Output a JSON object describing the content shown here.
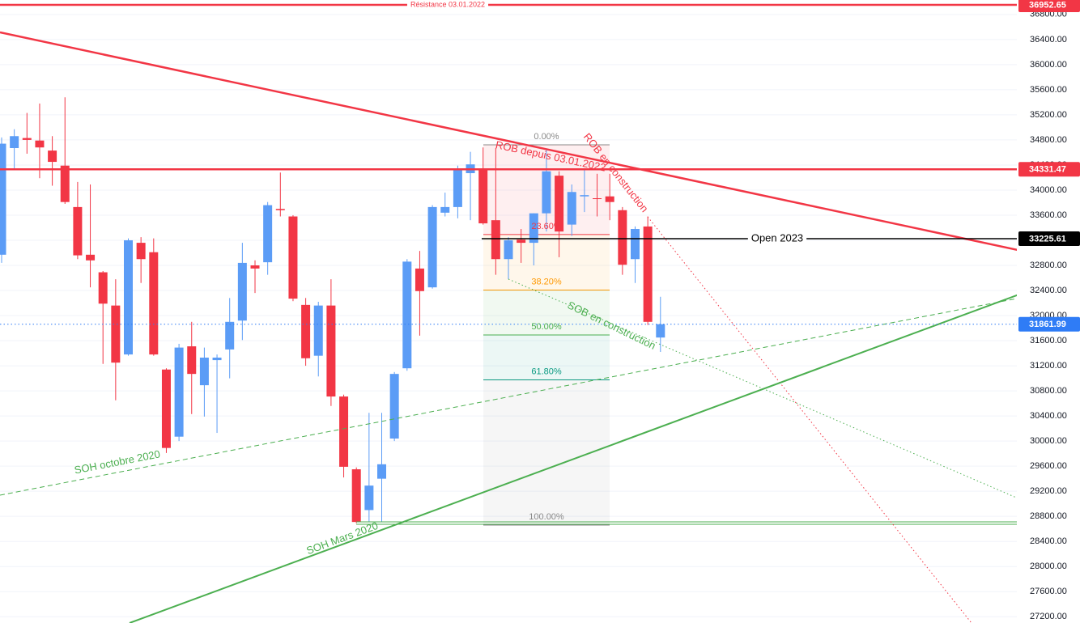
{
  "chart_data": {
    "type": "candlestick",
    "ylim": [
      27100,
      37030
    ],
    "yticks": [
      {
        "value": 27200,
        "label": "27200.00"
      },
      {
        "value": 27600,
        "label": "27600.00"
      },
      {
        "value": 28000,
        "label": "28000.00"
      },
      {
        "value": 28400,
        "label": "28400.00"
      },
      {
        "value": 28800,
        "label": "28800.00"
      },
      {
        "value": 29200,
        "label": "29200.00"
      },
      {
        "value": 29600,
        "label": "29600.00"
      },
      {
        "value": 30000,
        "label": "30000.00"
      },
      {
        "value": 30400,
        "label": "30400.00"
      },
      {
        "value": 30800,
        "label": "30800.00"
      },
      {
        "value": 31200,
        "label": "31200.00"
      },
      {
        "value": 31600,
        "label": "31600.00"
      },
      {
        "value": 32000,
        "label": "32000.00"
      },
      {
        "value": 32400,
        "label": "32400.00"
      },
      {
        "value": 32800,
        "label": "32800.00"
      },
      {
        "value": 33200,
        "label": "33200.00"
      },
      {
        "value": 33600,
        "label": "33600.00"
      },
      {
        "value": 34000,
        "label": "34000.00"
      },
      {
        "value": 34400,
        "label": "34400.00"
      },
      {
        "value": 34800,
        "label": "34800.00"
      },
      {
        "value": 35200,
        "label": "35200.00"
      },
      {
        "value": 35600,
        "label": "35600.00"
      },
      {
        "value": 36000,
        "label": "36000.00"
      },
      {
        "value": 36400,
        "label": "36400.00"
      },
      {
        "value": 36800,
        "label": "36800.00"
      }
    ],
    "grid": true,
    "up_color": "#5b9cf6",
    "down_color": "#f23645",
    "candles": [
      {
        "open": 32970,
        "high": 34840,
        "low": 32840,
        "close": 34740
      },
      {
        "open": 34670,
        "high": 34970,
        "low": 34320,
        "close": 34860
      },
      {
        "open": 34830,
        "high": 35230,
        "low": 34580,
        "close": 34800
      },
      {
        "open": 34790,
        "high": 35380,
        "low": 34190,
        "close": 34680
      },
      {
        "open": 34630,
        "high": 34860,
        "low": 34070,
        "close": 34450
      },
      {
        "open": 34390,
        "high": 35480,
        "low": 33780,
        "close": 33810
      },
      {
        "open": 33730,
        "high": 34130,
        "low": 32900,
        "close": 32960
      },
      {
        "open": 32970,
        "high": 34090,
        "low": 32450,
        "close": 32880
      },
      {
        "open": 32690,
        "high": 32710,
        "low": 31230,
        "close": 32190
      },
      {
        "open": 32160,
        "high": 32580,
        "low": 30650,
        "close": 31250
      },
      {
        "open": 31380,
        "high": 33230,
        "low": 31360,
        "close": 33200
      },
      {
        "open": 33160,
        "high": 33250,
        "low": 32520,
        "close": 32900
      },
      {
        "open": 33010,
        "high": 33230,
        "low": 31360,
        "close": 31380
      },
      {
        "open": 31140,
        "high": 31160,
        "low": 29810,
        "close": 29890
      },
      {
        "open": 30070,
        "high": 31550,
        "low": 30000,
        "close": 31490
      },
      {
        "open": 31510,
        "high": 31900,
        "low": 30430,
        "close": 31070
      },
      {
        "open": 30890,
        "high": 31490,
        "low": 30390,
        "close": 31330
      },
      {
        "open": 31290,
        "high": 31380,
        "low": 30130,
        "close": 31330
      },
      {
        "open": 31460,
        "high": 32280,
        "low": 31000,
        "close": 31900
      },
      {
        "open": 31920,
        "high": 33160,
        "low": 31610,
        "close": 32840
      },
      {
        "open": 32800,
        "high": 32880,
        "low": 32360,
        "close": 32750
      },
      {
        "open": 32850,
        "high": 33810,
        "low": 32650,
        "close": 33760
      },
      {
        "open": 33700,
        "high": 34280,
        "low": 33580,
        "close": 33680
      },
      {
        "open": 33580,
        "high": 33600,
        "low": 32230,
        "close": 32270
      },
      {
        "open": 32170,
        "high": 32280,
        "low": 31200,
        "close": 31320
      },
      {
        "open": 31360,
        "high": 32220,
        "low": 31030,
        "close": 32160
      },
      {
        "open": 32160,
        "high": 32580,
        "low": 30560,
        "close": 30710
      },
      {
        "open": 30710,
        "high": 30740,
        "low": 29420,
        "close": 29590
      },
      {
        "open": 29550,
        "high": 29580,
        "low": 28690,
        "close": 28710
      },
      {
        "open": 28900,
        "high": 30450,
        "low": 28710,
        "close": 29290
      },
      {
        "open": 29400,
        "high": 30450,
        "low": 28710,
        "close": 29630
      },
      {
        "open": 30040,
        "high": 31100,
        "low": 30000,
        "close": 31070
      },
      {
        "open": 31160,
        "high": 32900,
        "low": 31120,
        "close": 32860
      },
      {
        "open": 32750,
        "high": 33030,
        "low": 31680,
        "close": 32390
      },
      {
        "open": 32450,
        "high": 33760,
        "low": 32430,
        "close": 33730
      },
      {
        "open": 33640,
        "high": 33960,
        "low": 33580,
        "close": 33730
      },
      {
        "open": 33730,
        "high": 34390,
        "low": 33550,
        "close": 34320
      },
      {
        "open": 34270,
        "high": 34610,
        "low": 33520,
        "close": 34410
      },
      {
        "open": 34320,
        "high": 34680,
        "low": 33450,
        "close": 33470
      },
      {
        "open": 33520,
        "high": 34670,
        "low": 32650,
        "close": 32900
      },
      {
        "open": 32900,
        "high": 33250,
        "low": 32580,
        "close": 33200
      },
      {
        "open": 33210,
        "high": 33380,
        "low": 32840,
        "close": 33160
      },
      {
        "open": 33160,
        "high": 33630,
        "low": 32800,
        "close": 33630
      },
      {
        "open": 33630,
        "high": 34650,
        "low": 33340,
        "close": 34300
      },
      {
        "open": 34230,
        "high": 34300,
        "low": 32930,
        "close": 33340
      },
      {
        "open": 33450,
        "high": 34090,
        "low": 33270,
        "close": 33970
      },
      {
        "open": 33900,
        "high": 34350,
        "low": 33650,
        "close": 33920
      },
      {
        "open": 33870,
        "high": 34260,
        "low": 33580,
        "close": 33860
      },
      {
        "open": 33900,
        "high": 34260,
        "low": 33520,
        "close": 33810
      },
      {
        "open": 33680,
        "high": 33730,
        "low": 32650,
        "close": 32810
      },
      {
        "open": 32900,
        "high": 33420,
        "low": 32520,
        "close": 33380
      },
      {
        "open": 33420,
        "high": 33580,
        "low": 31850,
        "close": 31900
      },
      {
        "open": 31650,
        "high": 32300,
        "low": 31420,
        "close": 31861.99
      }
    ],
    "price_lines": [
      {
        "name": "Résistance 03.01.2022",
        "value": 36952.65,
        "color": "#f23645",
        "style": "solid"
      },
      {
        "value": 34331.47,
        "color": "#f23645",
        "style": "solid"
      },
      {
        "name": "Open 2023",
        "value": 33225.61,
        "color": "#000000",
        "style": "solid"
      },
      {
        "value": 31861.99,
        "color": "#2f7cf6",
        "style": "dotted"
      }
    ],
    "fib": {
      "levels": [
        {
          "value": 0,
          "label": "0.00%",
          "color": "#8a8a8a"
        },
        {
          "value": 23.6,
          "label": "23.60%",
          "color": "#f23645"
        },
        {
          "value": 38.2,
          "label": "38.20%",
          "color": "#ff9800"
        },
        {
          "value": 50,
          "label": "50.00%",
          "color": "#4caf50"
        },
        {
          "value": 61.8,
          "label": "61.80%",
          "color": "#089981"
        },
        {
          "value": 100,
          "label": "100.00%",
          "color": "#8a8a8a"
        }
      ]
    },
    "trendlines": [
      {
        "label": "ROB depuis 03.01.2022",
        "color": "#f23645",
        "style": "solid"
      },
      {
        "label": "ROB en construction",
        "color": "#f23645",
        "style": "dotted"
      },
      {
        "label": "SOH Mars 2020",
        "color": "#4caf50",
        "style": "solid"
      },
      {
        "label": "SOH octobre 2020",
        "color": "#4caf50",
        "style": "dashed"
      },
      {
        "label": "SOB en construction",
        "color": "#4caf50",
        "style": "dotted"
      }
    ]
  }
}
